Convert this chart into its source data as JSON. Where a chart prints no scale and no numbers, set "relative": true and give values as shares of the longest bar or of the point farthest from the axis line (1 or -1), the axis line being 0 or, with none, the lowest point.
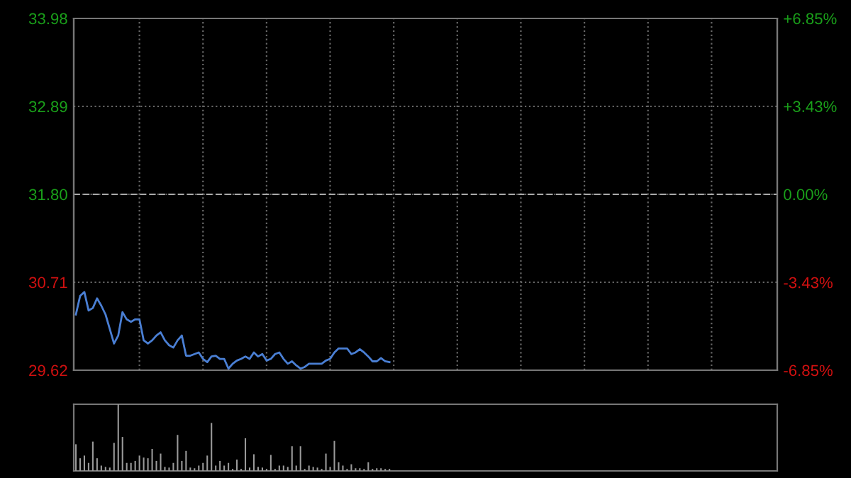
{
  "chart_data": [
    {
      "type": "line",
      "color": "#4a7fd4",
      "categories": [
        null,
        null,
        null,
        null,
        null,
        null,
        null,
        null,
        null,
        null,
        null,
        null,
        null,
        null,
        null,
        null,
        null,
        null,
        null,
        null,
        null,
        null,
        null,
        null,
        null,
        null,
        null,
        null,
        null,
        null,
        null,
        null,
        null,
        null,
        null,
        null,
        null,
        null,
        null,
        null,
        null,
        null,
        null,
        null,
        null,
        null,
        null,
        null,
        null,
        null,
        null,
        null,
        null,
        null,
        null,
        null,
        null,
        null,
        null,
        null,
        null,
        null,
        null,
        null,
        null,
        null,
        null,
        null,
        null,
        null,
        null,
        null,
        null,
        null,
        null,
        null,
        null,
        null,
        null,
        null,
        null,
        null,
        null,
        null,
        null,
        null,
        null,
        null,
        null,
        null,
        null,
        null,
        null,
        null,
        null,
        null,
        null,
        null,
        null,
        null,
        null,
        null,
        null,
        null,
        null,
        null,
        null,
        null,
        null,
        null,
        null,
        null,
        null,
        null,
        null,
        null,
        null,
        null,
        null,
        null,
        null,
        null,
        null,
        null,
        null,
        null,
        null,
        null,
        null,
        null,
        null,
        null,
        null,
        null,
        null,
        null,
        null,
        null,
        null,
        null,
        null,
        null,
        null,
        null,
        null,
        null,
        null,
        null,
        null,
        null,
        null,
        null,
        null,
        null,
        null,
        null,
        null,
        null,
        null,
        null,
        null,
        null,
        null,
        null,
        null,
        null
      ],
      "ylim": [
        29.62,
        33.98
      ],
      "yticks": [
        33.98,
        32.89,
        {
          "value": 31.8,
          "label": "31.80"
        },
        30.71,
        29.62
      ],
      "y2lim": [
        -6.85,
        6.85
      ],
      "y2ticks": [
        {
          "value": 6.85,
          "label": "+6.85%"
        },
        {
          "value": 3.43,
          "label": "+3.43%"
        },
        {
          "value": 0,
          "label": "0.00%"
        },
        {
          "value": -3.43,
          "label": "-3.43%"
        },
        {
          "value": -6.85,
          "label": "-6.85%"
        }
      ],
      "grid": true,
      "ref_lines": [
        {
          "axis": "y",
          "value": 31.8,
          "line_style": "dashed",
          "color": "#aaaaaa"
        }
      ],
      "values": [
        30.31,
        30.54,
        30.59,
        30.36,
        30.39,
        30.51,
        30.42,
        30.31,
        30.13,
        29.95,
        30.05,
        30.34,
        30.25,
        30.22,
        30.25,
        30.25,
        29.99,
        29.95,
        29.99,
        30.05,
        30.09,
        29.99,
        29.93,
        29.9,
        29.99,
        30.05,
        29.8,
        29.8,
        29.82,
        29.84,
        29.76,
        29.72,
        29.79,
        29.8,
        29.76,
        29.76,
        29.64,
        29.7,
        29.74,
        29.76,
        29.79,
        29.76,
        29.84,
        29.79,
        29.82,
        29.74,
        29.76,
        29.82,
        29.84,
        29.76,
        29.7,
        29.73,
        29.68,
        29.64,
        29.66,
        29.7,
        29.7,
        29.7,
        29.7,
        29.74,
        29.76,
        29.84,
        29.89,
        29.89,
        29.89,
        29.82,
        29.84,
        29.88,
        29.84,
        29.79,
        29.73,
        29.73,
        29.77,
        29.73,
        29.72,
        null,
        null,
        null,
        null,
        null,
        null,
        null,
        null,
        null,
        null,
        null,
        null,
        null,
        null,
        null,
        null,
        null,
        null,
        null,
        null,
        null,
        null,
        null,
        null,
        null,
        null,
        null,
        null,
        null,
        null,
        null,
        null,
        null,
        null,
        null,
        null,
        null,
        null,
        null,
        null,
        null,
        null,
        null,
        null,
        null,
        null,
        null,
        null,
        null,
        null,
        null,
        null,
        null,
        null,
        null,
        null,
        null,
        null,
        null,
        null,
        null,
        null,
        null,
        null,
        null,
        null,
        null,
        null,
        null,
        null,
        null,
        null,
        null,
        null,
        null,
        null,
        null,
        null,
        null,
        null,
        null,
        null,
        null,
        null,
        null,
        null,
        null,
        null,
        null,
        null,
        null
      ]
    },
    {
      "type": "bar",
      "color": "#9a9a9a",
      "relative": true,
      "categories": [
        null,
        null,
        null,
        null,
        null,
        null,
        null,
        null,
        null,
        null,
        null,
        null,
        null,
        null,
        null,
        null,
        null,
        null,
        null,
        null,
        null,
        null,
        null,
        null,
        null,
        null,
        null,
        null,
        null,
        null,
        null,
        null,
        null,
        null,
        null,
        null,
        null,
        null,
        null,
        null,
        null,
        null,
        null,
        null,
        null,
        null,
        null,
        null,
        null,
        null,
        null,
        null,
        null,
        null,
        null,
        null,
        null,
        null,
        null,
        null,
        null,
        null,
        null,
        null,
        null,
        null,
        null,
        null,
        null,
        null,
        null,
        null,
        null,
        null,
        null,
        null,
        null,
        null,
        null,
        null,
        null,
        null,
        null,
        null,
        null,
        null,
        null,
        null,
        null,
        null,
        null,
        null,
        null,
        null,
        null,
        null,
        null,
        null,
        null,
        null,
        null,
        null,
        null,
        null,
        null,
        null,
        null,
        null,
        null,
        null,
        null,
        null,
        null,
        null,
        null,
        null,
        null,
        null,
        null,
        null,
        null,
        null,
        null,
        null,
        null,
        null,
        null,
        null,
        null,
        null,
        null,
        null,
        null,
        null,
        null,
        null,
        null,
        null,
        null,
        null,
        null,
        null,
        null,
        null,
        null,
        null,
        null,
        null,
        null,
        null,
        null,
        null,
        null,
        null,
        null,
        null,
        null,
        null,
        null,
        null,
        null,
        null,
        null,
        null,
        null,
        null
      ],
      "values": [
        0.4,
        0.19,
        0.23,
        0.12,
        0.44,
        0.19,
        0.08,
        0.06,
        0.05,
        0.42,
        1.0,
        0.51,
        0.12,
        0.12,
        0.15,
        0.23,
        0.2,
        0.19,
        0.33,
        0.15,
        0.26,
        0.06,
        0.05,
        0.12,
        0.54,
        0.15,
        0.3,
        0.05,
        0.04,
        0.08,
        0.12,
        0.23,
        0.72,
        0.08,
        0.15,
        0.08,
        0.12,
        0.03,
        0.17,
        0.03,
        0.49,
        0.05,
        0.25,
        0.06,
        0.05,
        0.03,
        0.24,
        0.03,
        0.08,
        0.08,
        0.06,
        0.37,
        0.08,
        0.37,
        0.03,
        0.08,
        0.06,
        0.05,
        0.03,
        0.26,
        0.06,
        0.45,
        0.13,
        0.08,
        0.03,
        0.1,
        0.04,
        0.04,
        0.03,
        0.13,
        0.03,
        0.04,
        0.04,
        0.03,
        0.03,
        null,
        null,
        null,
        null,
        null,
        null,
        null,
        null,
        null,
        null,
        null,
        null,
        null,
        null,
        null,
        null,
        null,
        null,
        null,
        null,
        null,
        null,
        null,
        null,
        null,
        null,
        null,
        null,
        null,
        null,
        null,
        null,
        null,
        null,
        null,
        null,
        null,
        null,
        null,
        null,
        null,
        null,
        null,
        null,
        null,
        null,
        null,
        null,
        null,
        null,
        null,
        null,
        null,
        null,
        null,
        null,
        null,
        null,
        null,
        null,
        null,
        null,
        null,
        null,
        null,
        null,
        null,
        null,
        null,
        null,
        null,
        null,
        null,
        null,
        null,
        null,
        null,
        null,
        null,
        null,
        null,
        null,
        null,
        null,
        null,
        null,
        null,
        null,
        null,
        null,
        null
      ]
    }
  ]
}
